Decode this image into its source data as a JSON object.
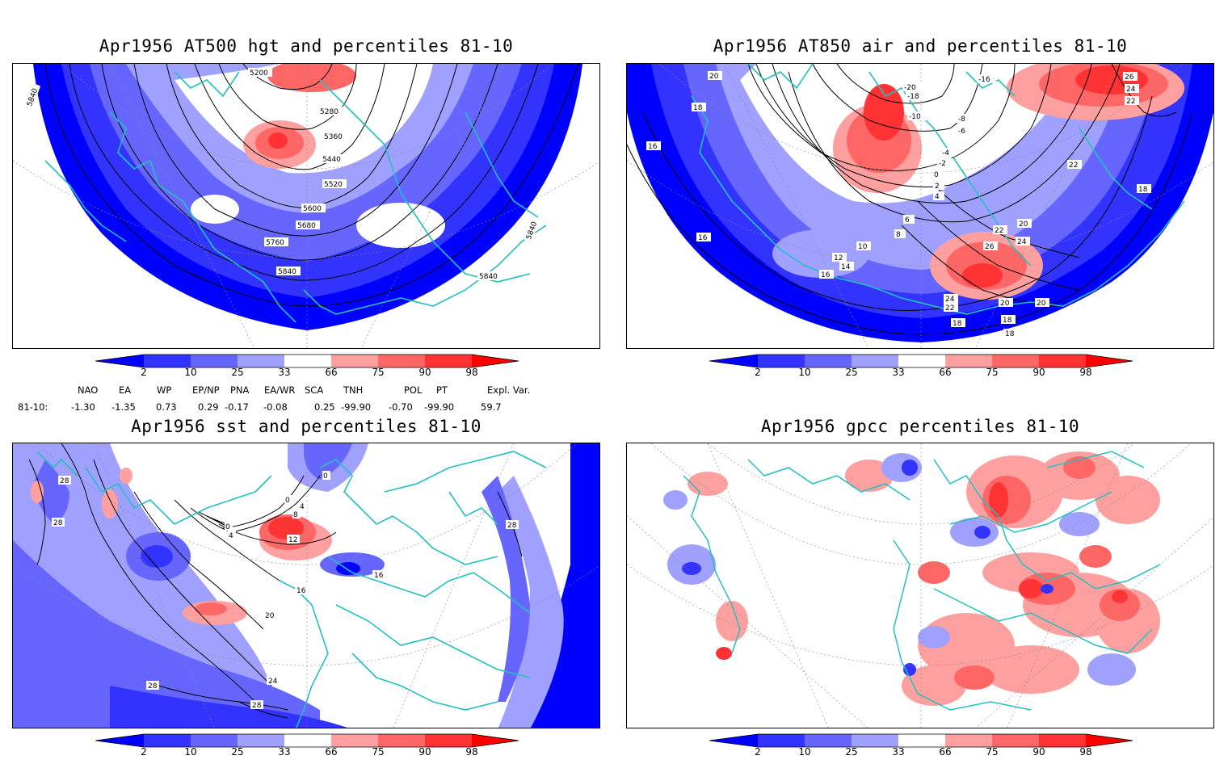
{
  "panels": [
    {
      "title": "Apr1956 AT500 hgt and percentiles 81-10",
      "contour_labels": [
        "5200",
        "5280",
        "5360",
        "5440",
        "5520",
        "5600",
        "5680",
        "5760",
        "5840",
        "5840",
        "5840",
        "5840"
      ]
    },
    {
      "title": "Apr1956 AT850 air and percentiles 81-10",
      "contour_labels": [
        "20",
        "18",
        "16",
        "16",
        "-20",
        "-18",
        "-16",
        "-10",
        "-8",
        "-6",
        "-4",
        "-2",
        "0",
        "2",
        "4",
        "6",
        "8",
        "10",
        "12",
        "14",
        "16",
        "18",
        "18",
        "20",
        "20",
        "20",
        "22",
        "22",
        "24",
        "24",
        "26",
        "26",
        "22",
        "18",
        "18",
        "24",
        "22"
      ]
    },
    {
      "title": "Apr1956 sst and percentiles 81-10",
      "contour_labels": [
        "28",
        "28",
        "0",
        "0",
        "4",
        "8",
        "0",
        "4",
        "12",
        "16",
        "16",
        "20",
        "24",
        "28",
        "28",
        "28"
      ]
    },
    {
      "title": "Apr1956 gpcc percentiles 81-10",
      "contour_labels": []
    }
  ],
  "colorbar": {
    "labels": [
      "2",
      "10",
      "25",
      "33",
      "66",
      "75",
      "90",
      "98"
    ],
    "colors": [
      "#0000ff",
      "#3333ff",
      "#6666ff",
      "#a0a0ff",
      "#ffffff",
      "#ffa0a0",
      "#ff6666",
      "#ff3333",
      "#ff0000"
    ]
  },
  "indices": {
    "header": [
      "NAO",
      "EA",
      "WP",
      "EP/NP",
      "PNA",
      "EA/WR",
      "SCA",
      "TNH",
      "POL",
      "PT",
      "Expl. Var."
    ],
    "row_label": "81-10:",
    "values": [
      "-1.30",
      "-1.35",
      "0.73",
      "0.29",
      "-0.17",
      "-0.08",
      "0.25",
      "-99.90",
      "-0.70",
      "-99.90",
      "59.7"
    ]
  },
  "colors": {
    "coast": "#22c0c0",
    "frame": "#000000"
  }
}
